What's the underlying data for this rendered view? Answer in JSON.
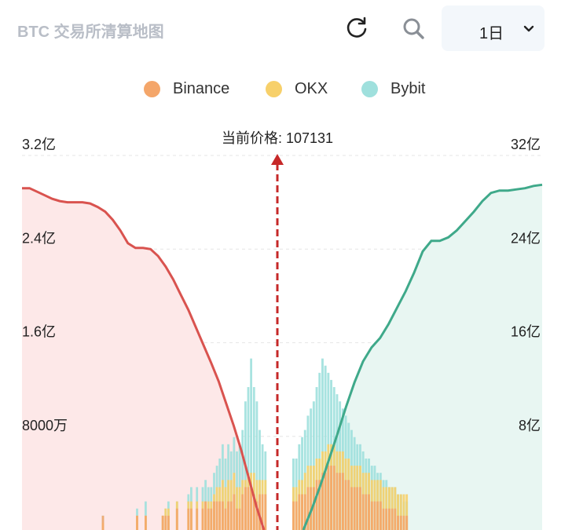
{
  "header": {
    "title": "BTC 交易所清算地图",
    "timeframe": "1日",
    "icons": {
      "refresh": "refresh-icon",
      "search": "search-icon",
      "dropdown": "chevron-down-icon"
    }
  },
  "colors": {
    "binance": "#f4a66a",
    "okx": "#f7d06a",
    "bybit": "#9fe0dd",
    "short_curve": "#d9534f",
    "long_curve": "#3fa98a",
    "short_fill": "#fde8e8",
    "long_fill": "#e8f6f2",
    "price_line": "#c62828"
  },
  "chart_data": {
    "type": "bar",
    "current_price_label": "当前价格: 107131",
    "legend": [
      {
        "name": "Binance",
        "color": "#f4a66a"
      },
      {
        "name": "OKX",
        "color": "#f7d06a"
      },
      {
        "name": "Bybit",
        "color": "#9fe0dd"
      }
    ],
    "left_axis": {
      "ticks": [
        "3.2亿",
        "2.4亿",
        "1.6亿",
        "8000万"
      ],
      "values": [
        320000000,
        240000000,
        160000000,
        80000000
      ],
      "range": [
        0,
        320000000
      ]
    },
    "right_axis": {
      "ticks": [
        "32亿",
        "24亿",
        "16亿",
        "8亿"
      ],
      "values": [
        3200000000,
        2400000000,
        1600000000,
        800000000
      ],
      "range": [
        0,
        3200000000
      ]
    },
    "left_bars": {
      "binance": [
        0,
        0,
        0,
        0,
        0,
        0,
        0,
        0,
        0,
        0,
        0,
        0,
        0,
        0,
        0,
        0,
        0,
        0,
        0,
        0,
        0,
        0,
        0,
        0,
        0,
        0,
        0,
        0,
        2,
        0,
        0,
        0,
        0,
        0,
        0,
        0,
        0,
        0,
        0,
        0,
        2,
        0,
        0,
        2,
        0,
        0,
        0,
        0,
        0,
        2,
        2,
        2,
        0,
        0,
        3,
        0,
        0,
        0,
        3,
        3,
        0,
        3,
        0,
        3,
        4,
        3,
        3,
        4,
        4,
        4,
        4,
        3,
        4,
        4,
        5,
        3,
        3,
        5,
        6,
        6,
        6,
        5,
        4,
        5,
        5,
        5
      ],
      "okx": [
        0,
        0,
        0,
        0,
        0,
        0,
        0,
        0,
        0,
        0,
        0,
        0,
        0,
        0,
        0,
        0,
        0,
        0,
        0,
        0,
        0,
        0,
        0,
        0,
        0,
        0,
        0,
        0,
        1,
        0,
        0,
        0,
        0,
        0,
        0,
        0,
        0,
        0,
        0,
        0,
        2,
        0,
        0,
        2,
        0,
        0,
        0,
        0,
        0,
        2,
        3,
        3,
        0,
        0,
        4,
        0,
        0,
        0,
        4,
        4,
        0,
        4,
        0,
        4,
        4,
        4,
        4,
        5,
        6,
        6,
        7,
        6,
        7,
        7,
        8,
        6,
        6,
        7,
        7,
        8,
        8,
        8,
        7,
        7,
        7,
        7
      ],
      "bybit": [
        0,
        0,
        0,
        0,
        0,
        0,
        0,
        0,
        0,
        0,
        0,
        0,
        0,
        0,
        0,
        0,
        0,
        0,
        0,
        0,
        0,
        0,
        0,
        0,
        0,
        0,
        0,
        0,
        2,
        0,
        0,
        0,
        0,
        0,
        0,
        0,
        0,
        0,
        0,
        0,
        3,
        0,
        0,
        4,
        0,
        0,
        0,
        0,
        0,
        2,
        3,
        4,
        0,
        0,
        4,
        0,
        0,
        0,
        5,
        6,
        0,
        6,
        0,
        6,
        7,
        6,
        6,
        8,
        9,
        10,
        12,
        10,
        12,
        11,
        13,
        11,
        12,
        14,
        18,
        20,
        24,
        20,
        18,
        14,
        12,
        11
      ]
    },
    "right_bars": {
      "binance": [
        4,
        4,
        5,
        5,
        5,
        6,
        6,
        6,
        7,
        7,
        8,
        8,
        9,
        9,
        9,
        8,
        8,
        8,
        7,
        7,
        6,
        6,
        6,
        6,
        5,
        5,
        5,
        4,
        4,
        4,
        4,
        3,
        3,
        3,
        3,
        3,
        2,
        2,
        2,
        2,
        0,
        0,
        0,
        0,
        0,
        0,
        0,
        0,
        0,
        0,
        0,
        0,
        0,
        0,
        0,
        0,
        0,
        0,
        0,
        0,
        0,
        0,
        0,
        0,
        0,
        0,
        0,
        0,
        0,
        0,
        0,
        0,
        0,
        0,
        0,
        0,
        0,
        0,
        0,
        0,
        0,
        0,
        0,
        0,
        0,
        0
      ],
      "okx": [
        6,
        6,
        7,
        7,
        8,
        9,
        9,
        9,
        10,
        10,
        11,
        11,
        12,
        12,
        12,
        11,
        11,
        11,
        10,
        10,
        9,
        9,
        9,
        9,
        8,
        8,
        8,
        7,
        7,
        7,
        7,
        6,
        6,
        6,
        6,
        6,
        5,
        5,
        5,
        5,
        0,
        0,
        0,
        0,
        0,
        0,
        0,
        0,
        0,
        0,
        0,
        0,
        0,
        0,
        0,
        0,
        0,
        0,
        0,
        0,
        0,
        0,
        0,
        0,
        0,
        0,
        0,
        0,
        0,
        0,
        0,
        0,
        0,
        0,
        0,
        0,
        0,
        0,
        0,
        0,
        0,
        0,
        0,
        0,
        0,
        0
      ],
      "bybit": [
        10,
        10,
        12,
        13,
        14,
        16,
        17,
        18,
        20,
        22,
        24,
        23,
        22,
        21,
        20,
        19,
        18,
        17,
        16,
        15,
        14,
        13,
        12,
        12,
        11,
        10,
        10,
        9,
        9,
        8,
        8,
        7,
        7,
        6,
        6,
        6,
        5,
        5,
        4,
        4,
        0,
        0,
        0,
        0,
        0,
        0,
        0,
        0,
        0,
        0,
        0,
        0,
        0,
        0,
        0,
        0,
        0,
        0,
        0,
        0,
        0,
        0,
        0,
        0,
        0,
        0,
        0,
        0,
        0,
        0,
        0,
        0,
        0,
        0,
        0,
        0,
        0,
        0,
        0,
        0,
        0,
        0,
        0,
        0,
        0,
        0
      ]
    },
    "short_curve_values": [
      292000000,
      292000000,
      289000000,
      286000000,
      283000000,
      281000000,
      280000000,
      280000000,
      280000000,
      279000000,
      276000000,
      272000000,
      265000000,
      256000000,
      245000000,
      241000000,
      241000000,
      240000000,
      234000000,
      225000000,
      214000000,
      201000000,
      188000000,
      173000000,
      158000000,
      143000000,
      127000000,
      108000000,
      89000000,
      68000000,
      44000000,
      20000000,
      0
    ],
    "long_curve_values": [
      0,
      180000000,
      380000000,
      600000000,
      820000000,
      1050000000,
      1260000000,
      1440000000,
      1560000000,
      1640000000,
      1760000000,
      1900000000,
      2040000000,
      2200000000,
      2380000000,
      2470000000,
      2470000000,
      2500000000,
      2560000000,
      2640000000,
      2720000000,
      2810000000,
      2880000000,
      2900000000,
      2900000000,
      2910000000,
      2920000000,
      2940000000,
      2950000000
    ]
  }
}
